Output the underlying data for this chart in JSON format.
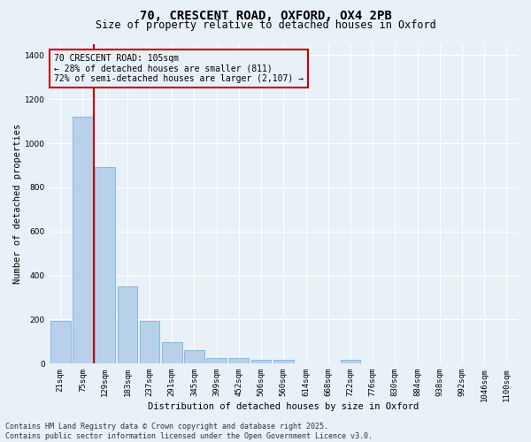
{
  "title_line1": "70, CRESCENT ROAD, OXFORD, OX4 2PB",
  "title_line2": "Size of property relative to detached houses in Oxford",
  "xlabel": "Distribution of detached houses by size in Oxford",
  "ylabel": "Number of detached properties",
  "bar_labels": [
    "21sqm",
    "75sqm",
    "129sqm",
    "183sqm",
    "237sqm",
    "291sqm",
    "345sqm",
    "399sqm",
    "452sqm",
    "506sqm",
    "560sqm",
    "614sqm",
    "668sqm",
    "722sqm",
    "776sqm",
    "830sqm",
    "884sqm",
    "938sqm",
    "992sqm",
    "1046sqm",
    "1100sqm"
  ],
  "bar_values": [
    195,
    1120,
    890,
    350,
    195,
    95,
    60,
    25,
    25,
    18,
    18,
    0,
    0,
    15,
    0,
    0,
    0,
    0,
    0,
    0,
    0
  ],
  "bar_color": "#b8d0ea",
  "bar_edge_color": "#6aaad4",
  "vline_position": 1.5,
  "vline_color": "#cc0000",
  "ylim": [
    0,
    1450
  ],
  "yticks": [
    0,
    200,
    400,
    600,
    800,
    1000,
    1200,
    1400
  ],
  "annotation_title": "70 CRESCENT ROAD: 105sqm",
  "annotation_line2": "← 28% of detached houses are smaller (811)",
  "annotation_line3": "72% of semi-detached houses are larger (2,107) →",
  "annotation_box_color": "#cc0000",
  "footer_line1": "Contains HM Land Registry data © Crown copyright and database right 2025.",
  "footer_line2": "Contains public sector information licensed under the Open Government Licence v3.0.",
  "bg_color": "#e8f0f8",
  "grid_color": "#ffffff",
  "title_fontsize": 10,
  "subtitle_fontsize": 8.5,
  "axis_label_fontsize": 7.5,
  "tick_fontsize": 6.5,
  "annotation_fontsize": 7,
  "footer_fontsize": 6
}
